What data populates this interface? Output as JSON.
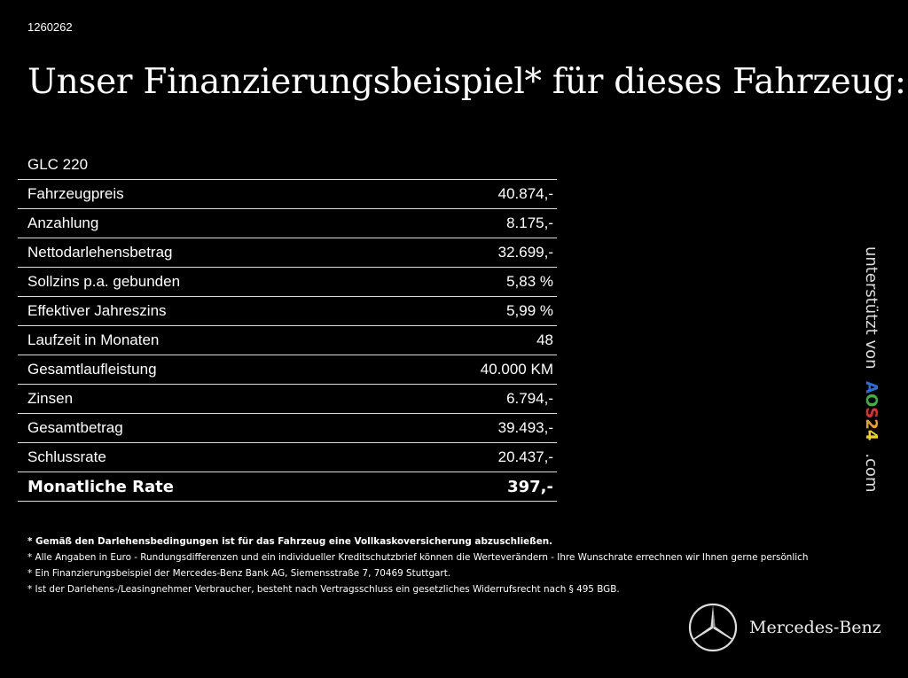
{
  "code": "1260262",
  "title": "Unser Finanzierungsbeispiel* für dieses Fahrzeug:",
  "model": "GLC 220",
  "rows": [
    {
      "label": "Fahrzeugpreis",
      "value": "40.874,-"
    },
    {
      "label": "Anzahlung",
      "value": "8.175,-"
    },
    {
      "label": "Nettodarlehensbetrag",
      "value": "32.699,-"
    },
    {
      "label": "Sollzins p.a. gebunden",
      "value": "5,83 %"
    },
    {
      "label": "Effektiver Jahreszins",
      "value": "5,99 %"
    },
    {
      "label": "Laufzeit in Monaten",
      "value": "48"
    },
    {
      "label": "Gesamtlaufleistung",
      "value": "40.000 KM"
    },
    {
      "label": "Zinsen",
      "value": "6.794,-"
    },
    {
      "label": "Gesamtbetrag",
      "value": "39.493,-"
    },
    {
      "label": "Schlussrate",
      "value": "20.437,-"
    }
  ],
  "total": {
    "label": "Monatliche Rate",
    "value": "397,-"
  },
  "notes": [
    "* Gemäß den Darlehensbedingungen ist für das Fahrzeug eine Vollkaskoversicherung abzuschließen.",
    "* Alle Angaben in Euro - Rundungsdifferenzen und ein individueller Kreditschutzbrief können die Werteverändern - Ihre Wunschrate errechnen wir Ihnen gerne persönlich",
    "* Ein Finanzierungsbeispiel der Mercedes-Benz Bank AG, Siemensstraße 7, 70469 Stuttgart.",
    "* Ist der Darlehens-/Leasingnehmer Verbraucher, besteht nach Vertragsschluss ein gesetzliches Widerrufsrecht nach § 495 BGB."
  ],
  "side": {
    "prefix": "unterstützt von",
    "logo_letters": [
      "A",
      "O",
      "S",
      "2",
      "4"
    ],
    "logo_colors": [
      "#2a6fd6",
      "#3cb043",
      "#e03030",
      "#f0a020",
      "#f0d020"
    ],
    "suffix": ".com"
  },
  "brand": "Mercedes-Benz"
}
